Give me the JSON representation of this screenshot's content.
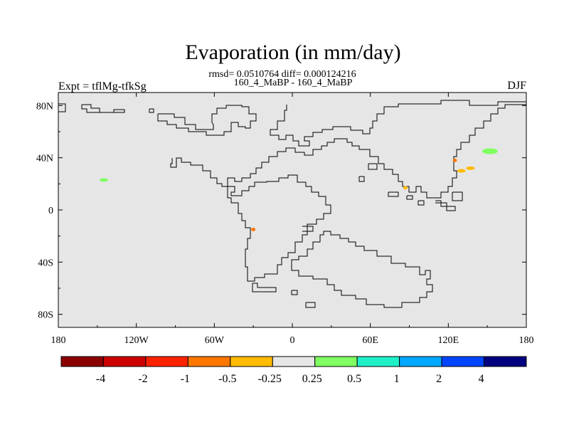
{
  "chart_data": {
    "type": "heatmap",
    "title": "Evaporation (in mm/day)",
    "subtitle": "rmsd= 0.0510764 diff= 0.000124216",
    "comparison": "160_4_MaBP - 160_4_MaBP",
    "left_label": "Expt = tflMg-tfkSg",
    "right_label": "DJF",
    "x_ticks": [
      "180",
      "120W",
      "60W",
      "0",
      "60E",
      "120E",
      "180"
    ],
    "x_range": [
      -180,
      180
    ],
    "y_ticks": [
      "80N",
      "40N",
      "0",
      "40S",
      "80S"
    ],
    "y_range": [
      -90,
      90
    ],
    "background_value_band": "-0.25 to 0.25",
    "colorbar": {
      "levels": [
        "-4",
        "-2",
        "-1",
        "-0.5",
        "-0.25",
        "0.25",
        "0.5",
        "1",
        "2",
        "4"
      ],
      "colors": [
        "#8b0000",
        "#cc0000",
        "#ff2200",
        "#ff7700",
        "#ffbb00",
        "#e6e6e6",
        "#80ff60",
        "#20f0c8",
        "#00a8ff",
        "#0044ff",
        "#000080"
      ]
    },
    "anomalies": [
      {
        "lon": 152,
        "lat": 45,
        "band": "0.25 to 0.5",
        "color": "#80ff60"
      },
      {
        "lon": -145,
        "lat": 23,
        "band": "0.25 to 0.5",
        "color": "#80ff60"
      },
      {
        "lon": 87,
        "lat": 17,
        "band": "-0.5 to -0.25",
        "color": "#ffbb00"
      },
      {
        "lon": 130,
        "lat": 30,
        "band": "-0.5 to -0.25",
        "color": "#ffbb00"
      },
      {
        "lon": 137,
        "lat": 32,
        "band": "-0.5 to -0.25",
        "color": "#ffbb00"
      },
      {
        "lon": 125,
        "lat": 38,
        "band": "-1 to -0.5",
        "color": "#ff7700"
      },
      {
        "lon": -30,
        "lat": -15,
        "band": "-1 to -0.5",
        "color": "#ff7700"
      }
    ]
  }
}
